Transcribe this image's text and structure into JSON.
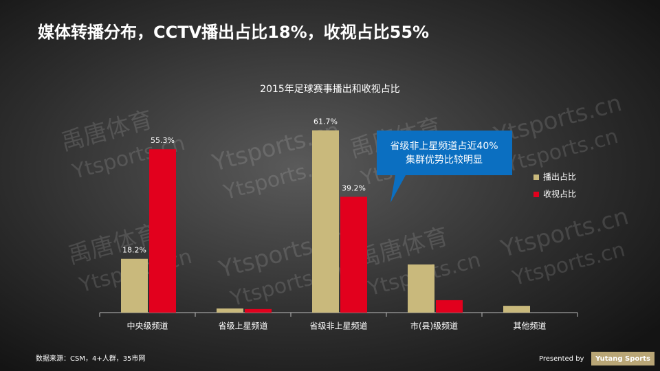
{
  "title": "媒体转播分布，CCTV播出占比18%，收视占比55%",
  "chart_data": {
    "type": "bar",
    "title": "2015年足球赛事播出和收视占比",
    "categories": [
      "中央级频道",
      "省级上星频道",
      "省级非上星频道",
      "市(县)级频道",
      "其他频道"
    ],
    "series": [
      {
        "name": "播出占比",
        "color": "#c9b97c",
        "values": [
          18.2,
          1.4,
          61.7,
          16.3,
          2.3
        ],
        "value_labels": [
          "18.2%",
          null,
          "61.7%",
          null,
          null
        ]
      },
      {
        "name": "收视占比",
        "color": "#e2001d",
        "values": [
          55.3,
          1.2,
          39.2,
          4.2,
          0
        ],
        "value_labels": [
          "55.3%",
          null,
          "39.2%",
          null,
          null
        ]
      }
    ],
    "legend": "right"
  },
  "callout": [
    "省级非上星频道占近40%",
    "集群优势比较明显"
  ],
  "source": "数据来源：CSM，4+人群，35市网",
  "footer": {
    "presented": "Presented by",
    "brand": "Yutang Sports"
  },
  "watermark": [
    "禹唐体育",
    "Ytsports.cn"
  ]
}
